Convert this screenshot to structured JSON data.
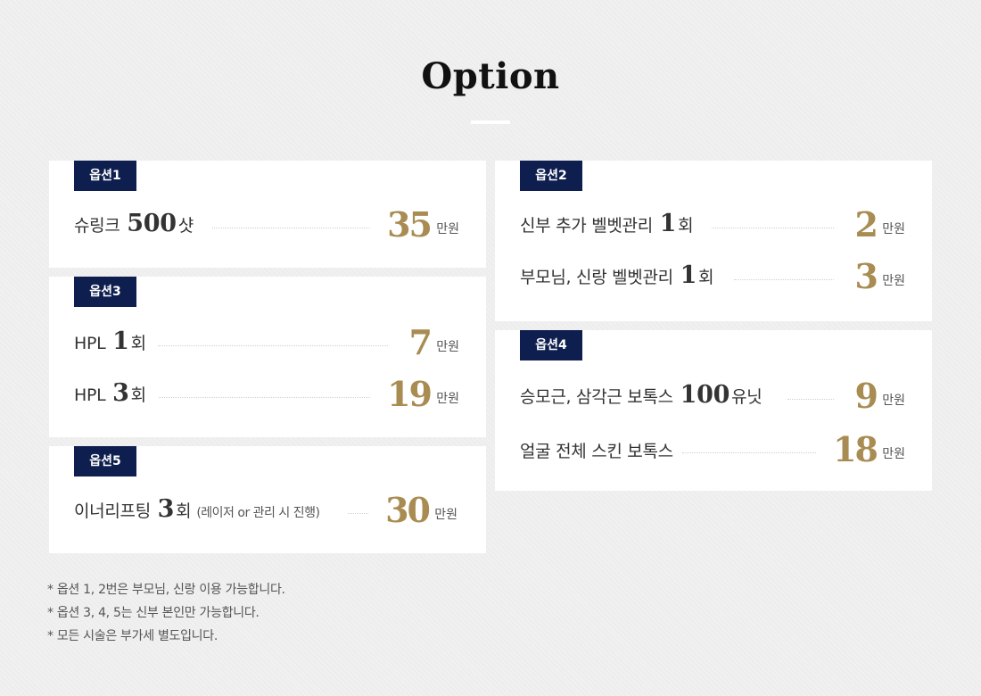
{
  "title": "Option",
  "cards": {
    "opt1": {
      "badge": "옵션1",
      "rows": [
        {
          "pre": "슈링크 ",
          "num": "500",
          "post": "샷",
          "price": "35",
          "unit": "만원"
        }
      ]
    },
    "opt2": {
      "badge": "옵션2",
      "rows": [
        {
          "pre": "신부 추가 벨벳관리 ",
          "num": "1",
          "post": "회",
          "price": "2",
          "unit": "만원"
        },
        {
          "pre": "부모님, 신랑 벨벳관리 ",
          "num": "1",
          "post": "회",
          "price": "3",
          "unit": "만원"
        }
      ]
    },
    "opt3": {
      "badge": "옵션3",
      "rows": [
        {
          "pre": "HPL ",
          "num": "1",
          "post": "회",
          "price": "7",
          "unit": "만원"
        },
        {
          "pre": "HPL ",
          "num": "3",
          "post": "회",
          "price": "19",
          "unit": "만원"
        }
      ]
    },
    "opt4": {
      "badge": "옵션4",
      "rows": [
        {
          "pre": "승모근, 삼각근 보톡스 ",
          "num": "100",
          "post": "유닛",
          "price": "9",
          "unit": "만원"
        },
        {
          "pre": "얼굴 전체 스킨 보톡스",
          "num": "",
          "post": "",
          "price": "18",
          "unit": "만원"
        }
      ]
    },
    "opt5": {
      "badge": "옵션5",
      "rows": [
        {
          "pre": "이너리프팅 ",
          "num": "3",
          "post": "회",
          "sub": "(레이저 or 관리 시 진행)",
          "price": "30",
          "unit": "만원"
        }
      ]
    }
  },
  "notes": [
    "* 옵션 1, 2번은 부모님, 신랑 이용 가능합니다.",
    "* 옵션 3, 4, 5는 신부 본인만 가능합니다.",
    "* 모든 시술은 부가세 별도입니다."
  ],
  "colors": {
    "badge": "#0e1e4e",
    "price": "#a88c52"
  }
}
